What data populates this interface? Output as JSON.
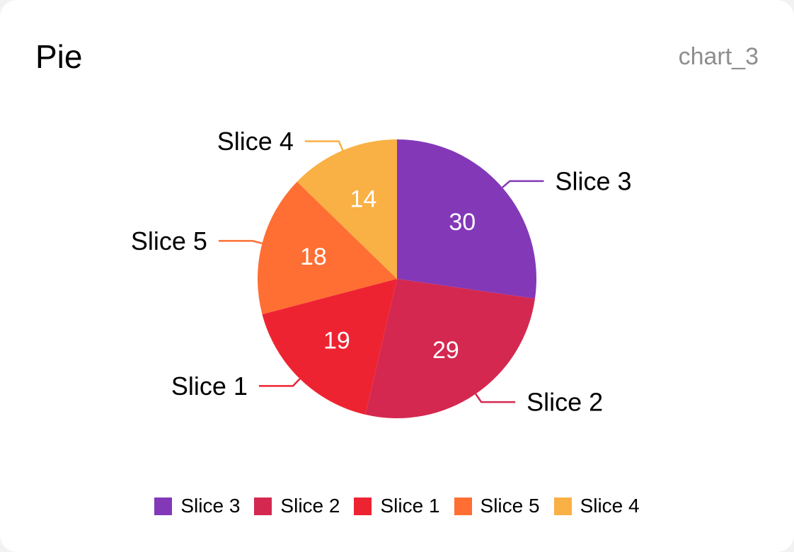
{
  "card": {
    "title": "Pie",
    "id_label": "chart_3"
  },
  "chart_data": {
    "type": "pie",
    "title": "",
    "start_angle": "12 o'clock, clockwise",
    "slices": [
      {
        "label": "Slice 3",
        "value": 30,
        "color": "#8338B8"
      },
      {
        "label": "Slice 2",
        "value": 29,
        "color": "#D42850"
      },
      {
        "label": "Slice 1",
        "value": 19,
        "color": "#EE2332"
      },
      {
        "label": "Slice 5",
        "value": 18,
        "color": "#FF6E33"
      },
      {
        "label": "Slice 4",
        "value": 14,
        "color": "#F9B044"
      }
    ],
    "legend_position": "bottom",
    "value_label_color": "#FFFFFF"
  }
}
